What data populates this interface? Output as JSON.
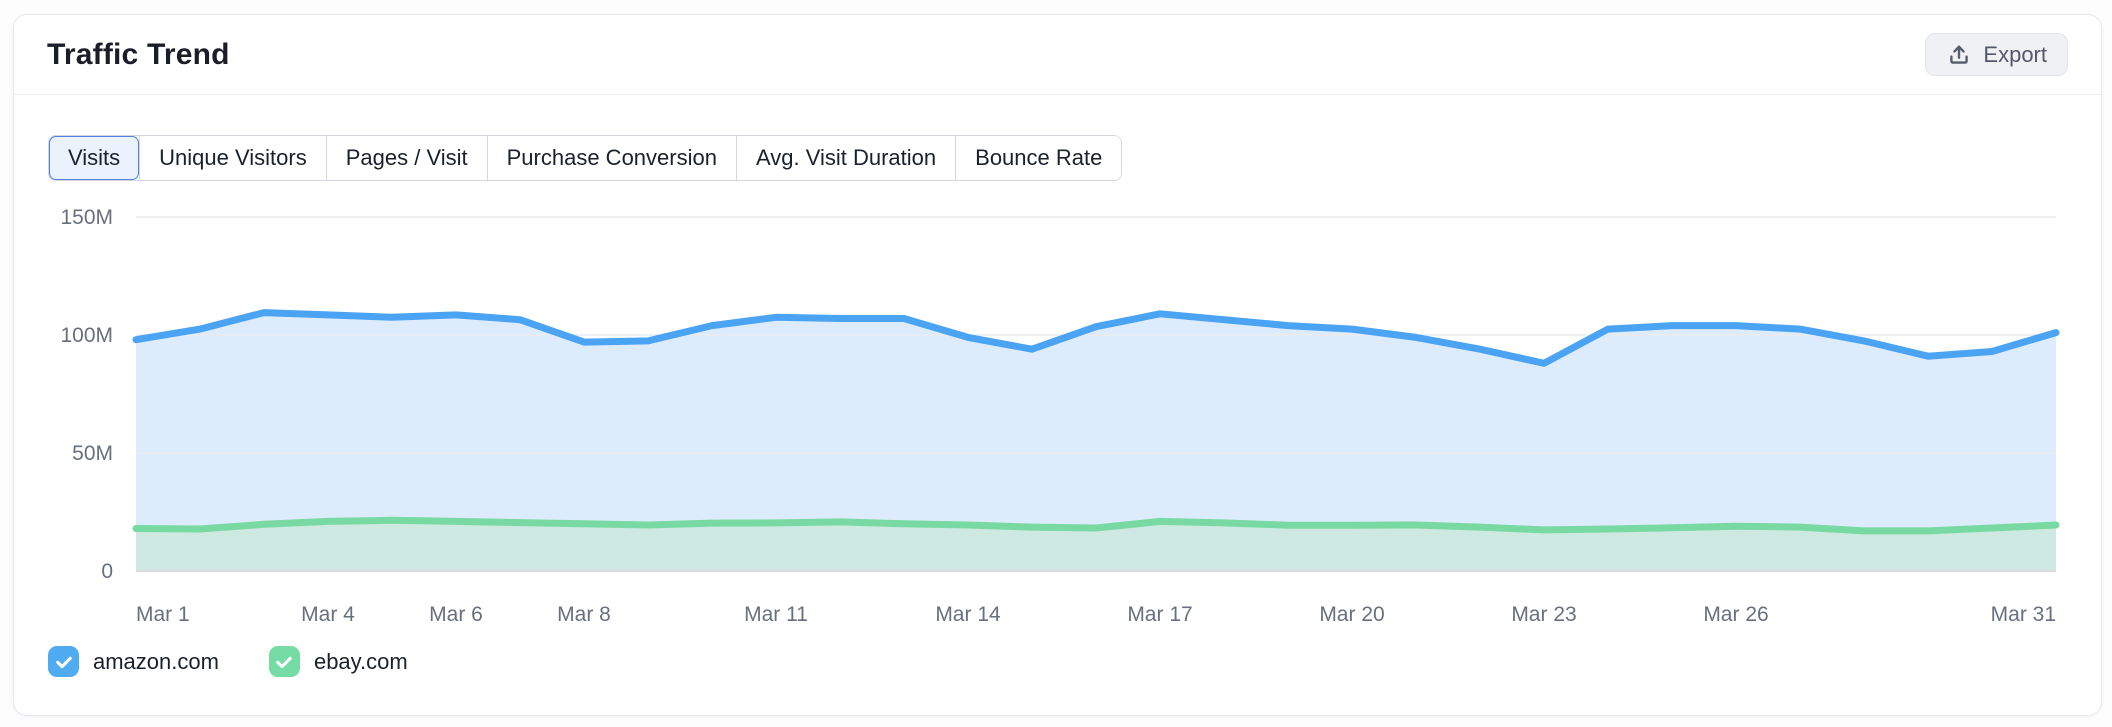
{
  "panel": {
    "title": "Traffic Trend"
  },
  "export_button": {
    "label": "Export",
    "icon": "upload-icon"
  },
  "tabs": [
    {
      "label": "Visits",
      "selected": true
    },
    {
      "label": "Unique Visitors",
      "selected": false
    },
    {
      "label": "Pages / Visit",
      "selected": false
    },
    {
      "label": "Purchase Conversion",
      "selected": false
    },
    {
      "label": "Avg. Visit Duration",
      "selected": false
    },
    {
      "label": "Bounce Rate",
      "selected": false
    }
  ],
  "legend": [
    {
      "label": "amazon.com",
      "color": "#4FACF3",
      "checked": true,
      "icon": "checkmark-icon"
    },
    {
      "label": "ebay.com",
      "color": "#74DCA4",
      "checked": true,
      "icon": "checkmark-icon"
    }
  ],
  "chart_data": {
    "type": "area",
    "title": "Traffic Trend",
    "metric": "Visits",
    "unit": "M",
    "grid": true,
    "legend_position": "bottom",
    "ylim": [
      0,
      150
    ],
    "yticks": [
      {
        "value": 150,
        "label": "150M"
      },
      {
        "value": 100,
        "label": "100M"
      },
      {
        "value": 50,
        "label": "50M"
      },
      {
        "value": 0,
        "label": "0"
      }
    ],
    "x": [
      "Mar 1",
      "Mar 2",
      "Mar 3",
      "Mar 4",
      "Mar 5",
      "Mar 6",
      "Mar 7",
      "Mar 8",
      "Mar 9",
      "Mar 10",
      "Mar 11",
      "Mar 12",
      "Mar 13",
      "Mar 14",
      "Mar 15",
      "Mar 16",
      "Mar 17",
      "Mar 18",
      "Mar 19",
      "Mar 20",
      "Mar 21",
      "Mar 22",
      "Mar 23",
      "Mar 24",
      "Mar 25",
      "Mar 26",
      "Mar 27",
      "Mar 28",
      "Mar 29",
      "Mar 30",
      "Mar 31"
    ],
    "xticks": [
      {
        "index": 0,
        "label": "Mar 1"
      },
      {
        "index": 3,
        "label": "Mar 4"
      },
      {
        "index": 5,
        "label": "Mar 6"
      },
      {
        "index": 7,
        "label": "Mar 8"
      },
      {
        "index": 10,
        "label": "Mar 11"
      },
      {
        "index": 13,
        "label": "Mar 14"
      },
      {
        "index": 16,
        "label": "Mar 17"
      },
      {
        "index": 19,
        "label": "Mar 20"
      },
      {
        "index": 22,
        "label": "Mar 23"
      },
      {
        "index": 25,
        "label": "Mar 26"
      },
      {
        "index": 30,
        "label": "Mar 31"
      }
    ],
    "series": [
      {
        "name": "amazon.com",
        "color": "#4AA3F3",
        "fill": "#DDECFC",
        "values_millions": [
          98,
          102.5,
          109.5,
          108.5,
          107.5,
          108.5,
          106.5,
          97,
          97.5,
          104,
          107.5,
          107,
          107,
          99,
          94,
          103.5,
          109,
          106.5,
          104,
          102.5,
          99,
          94,
          88,
          102.5,
          104,
          104,
          102.5,
          97.5,
          91,
          93,
          101
        ]
      },
      {
        "name": "ebay.com",
        "color": "#79D9A2",
        "fill": "#CDE9E2",
        "values_millions": [
          18,
          17.8,
          19.8,
          21,
          21.5,
          21,
          20.5,
          20,
          19.5,
          20.3,
          20.4,
          20.8,
          20,
          19.5,
          18.6,
          18.2,
          21,
          20.4,
          19.4,
          19.4,
          19.5,
          18.6,
          17.4,
          17.8,
          18.3,
          19,
          18.6,
          17,
          17,
          18.2,
          19.5
        ]
      }
    ]
  },
  "colors": {
    "grid_line": "#E9EBEF",
    "axis_line": "#D8DBE0",
    "axis_text": "#68707F",
    "tab_selected_bg": "#EAF2FE",
    "tab_selected_border": "#5180E2"
  }
}
